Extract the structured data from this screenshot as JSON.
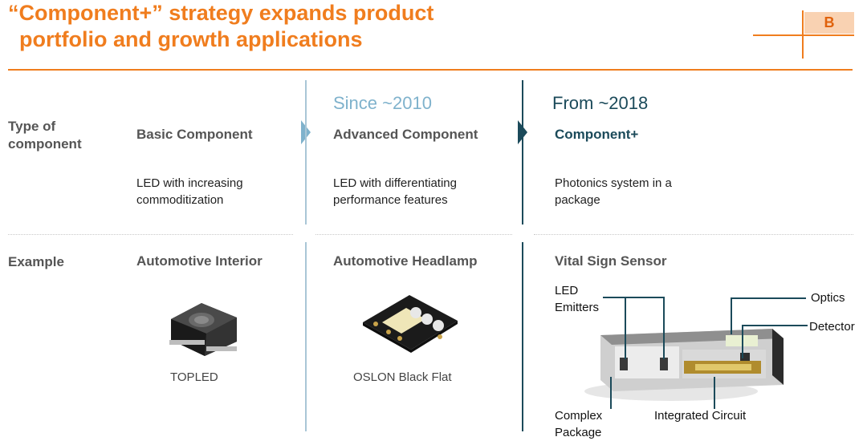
{
  "title": {
    "line1": "“Component+” strategy expands product",
    "line2": "portfolio and growth applications"
  },
  "badge": "B",
  "rows": {
    "type": "Type of\ncomponent",
    "example": "Example"
  },
  "eras": {
    "advanced": "Since ~2010",
    "plus": "From ~2018"
  },
  "columns": [
    {
      "heading": "Basic Component",
      "description": "LED with increasing commoditization",
      "example": "Automotive Interior",
      "caption": "TOPLED"
    },
    {
      "heading": "Advanced Component",
      "description": "LED with differentiating performance features",
      "example": "Automotive Headlamp",
      "caption": "OSLON Black Flat"
    },
    {
      "heading": "Component+",
      "description": "Photonics system in a package",
      "example": "Vital Sign Sensor",
      "caption": ""
    }
  ],
  "diagram_labels": {
    "led_emitters": "LED\nEmitters",
    "optics": "Optics",
    "detector": "Detector",
    "complex_package": "Complex\nPackage",
    "integrated_circuit": "Integrated Circuit"
  },
  "colors": {
    "accent": "#f07d1e",
    "dark_teal": "#1b4a5a",
    "light_blue": "#7fb2cc"
  }
}
